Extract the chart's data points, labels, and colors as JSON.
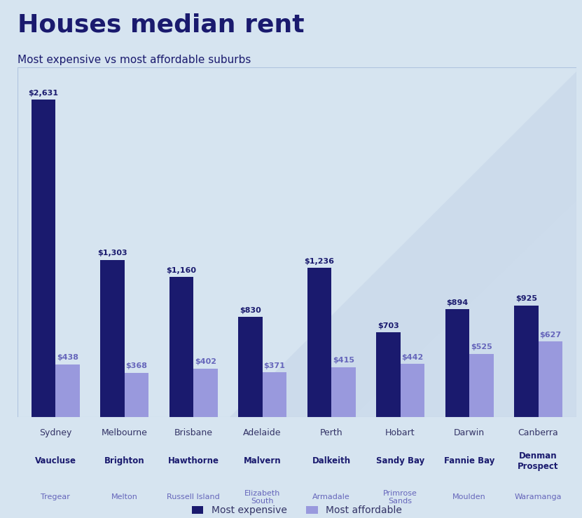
{
  "title": "Houses median rent",
  "subtitle": "Most expensive vs most affordable suburbs",
  "cities": [
    "Sydney",
    "Melbourne",
    "Brisbane",
    "Adelaide",
    "Perth",
    "Hobart",
    "Darwin",
    "Canberra"
  ],
  "expensive_values": [
    2631,
    1303,
    1160,
    830,
    1236,
    703,
    894,
    925
  ],
  "affordable_values": [
    438,
    368,
    402,
    371,
    415,
    442,
    525,
    627
  ],
  "expensive_suburbs": [
    "Vaucluse",
    "Brighton",
    "Hawthorne",
    "Malvern",
    "Dalkeith",
    "Sandy Bay",
    "Fannie Bay",
    "Denman\nProspect"
  ],
  "affordable_suburbs": [
    "Tregear",
    "Melton",
    "Russell Island",
    "Elizabeth\nSouth",
    "Armadale",
    "Primrose\nSands",
    "Moulden",
    "Waramanga"
  ],
  "expensive_color": "#1a1a6e",
  "affordable_color": "#9999dd",
  "background_color": "#d6e4f0",
  "chart_bg_color": "#edf2f8",
  "title_color": "#1a1a6e",
  "subtitle_color": "#1a1a6e",
  "city_label_color": "#333366",
  "expensive_suburb_color": "#1a1a6e",
  "affordable_suburb_color": "#6666bb",
  "value_label_expensive_color": "#1a1a6e",
  "value_label_affordable_color": "#6666bb",
  "bar_width": 0.35,
  "ylim": [
    0,
    2900
  ]
}
